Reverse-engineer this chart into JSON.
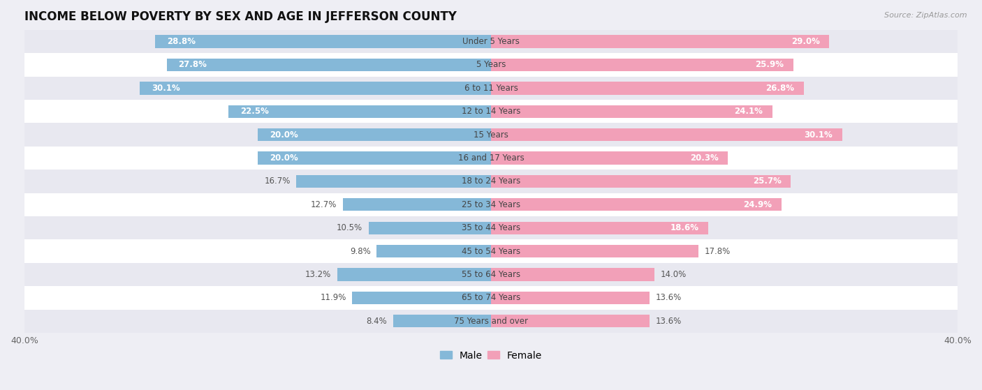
{
  "title": "INCOME BELOW POVERTY BY SEX AND AGE IN JEFFERSON COUNTY",
  "source": "Source: ZipAtlas.com",
  "categories": [
    "Under 5 Years",
    "5 Years",
    "6 to 11 Years",
    "12 to 14 Years",
    "15 Years",
    "16 and 17 Years",
    "18 to 24 Years",
    "25 to 34 Years",
    "35 to 44 Years",
    "45 to 54 Years",
    "55 to 64 Years",
    "65 to 74 Years",
    "75 Years and over"
  ],
  "male_values": [
    28.8,
    27.8,
    30.1,
    22.5,
    20.0,
    20.0,
    16.7,
    12.7,
    10.5,
    9.8,
    13.2,
    11.9,
    8.4
  ],
  "female_values": [
    29.0,
    25.9,
    26.8,
    24.1,
    30.1,
    20.3,
    25.7,
    24.9,
    18.6,
    17.8,
    14.0,
    13.6,
    13.6
  ],
  "male_color": "#85b8d8",
  "female_color": "#f2a0b8",
  "row_colors": [
    "#e8e8f0",
    "#ffffff"
  ],
  "bar_height": 0.55,
  "xlim": 40.0,
  "background_color": "#eeeef4",
  "title_fontsize": 12,
  "label_fontsize": 8.5,
  "value_fontsize": 8.5,
  "axis_fontsize": 9,
  "legend_fontsize": 10,
  "white_text_threshold": 18.0
}
